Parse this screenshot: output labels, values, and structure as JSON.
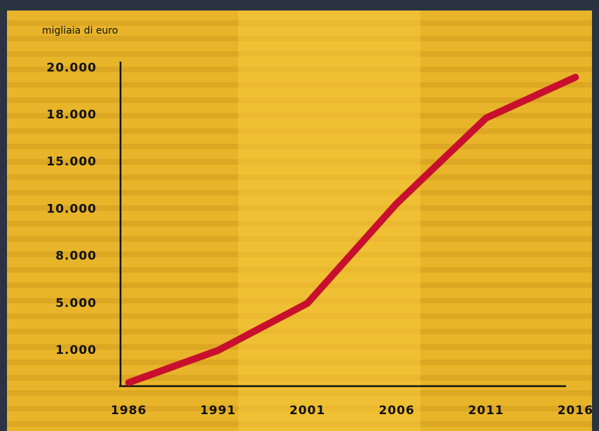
{
  "chart_data": {
    "type": "line",
    "y_axis_label": "migliaia di euro",
    "categories": [
      "1986",
      "1991",
      "2001",
      "2006",
      "2011",
      "2016"
    ],
    "series": [
      {
        "name": null,
        "color": "#c8102e",
        "values": [
          100,
          1000,
          5000,
          10600,
          17800,
          19600
        ]
      }
    ],
    "ylim": [
      0,
      20000
    ],
    "yticks": [
      {
        "value": 1000,
        "label": "1.000"
      },
      {
        "value": 5000,
        "label": "5.000"
      },
      {
        "value": 8000,
        "label": "8.000"
      },
      {
        "value": 10000,
        "label": "10.000"
      },
      {
        "value": 15000,
        "label": "15.000"
      },
      {
        "value": 18000,
        "label": "18.000"
      },
      {
        "value": 20000,
        "label": "20.000"
      }
    ]
  }
}
